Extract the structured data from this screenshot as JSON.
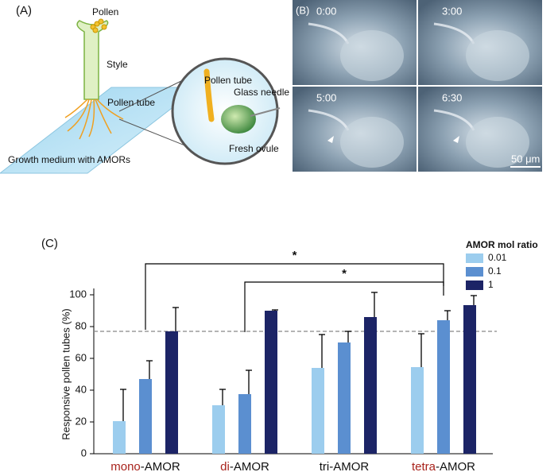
{
  "panel_a": {
    "label": "(A)",
    "pollen": "Pollen",
    "style": "Style",
    "pollen_tube": "Pollen tube",
    "medium": "Growth medium with AMORs",
    "zoom_pollen_tube": "Pollen tube",
    "glass_needle": "Glass needle",
    "fresh_ovule": "Fresh ovule"
  },
  "panel_b": {
    "label": "(B)",
    "times": [
      "0:00",
      "3:00",
      "5:00",
      "6:30"
    ],
    "scale_bar": "50 μm"
  },
  "chart_data": {
    "type": "bar",
    "panel_label": "(C)",
    "y_label": "Responsive pollen tubes (%)",
    "categories": [
      [
        "mono",
        "-AMOR"
      ],
      [
        "di",
        "-AMOR"
      ],
      [
        "tri",
        "-AMOR"
      ],
      [
        "tetra",
        "-AMOR"
      ]
    ],
    "label_highlight": [
      true,
      true,
      false,
      true
    ],
    "highlight_color": "#a8231c",
    "legend_title": "AMOR mol ratio",
    "series": [
      {
        "name": "0.01",
        "color": "#9ccdee",
        "values": [
          20.5,
          30.5,
          54,
          54.5
        ],
        "errors": [
          20,
          10,
          21,
          21
        ]
      },
      {
        "name": "0.1",
        "color": "#5b8fd0",
        "values": [
          47,
          37.5,
          70,
          84
        ],
        "errors": [
          11.5,
          15,
          7,
          6
        ]
      },
      {
        "name": "1",
        "color": "#1c2466",
        "values": [
          77,
          90,
          86,
          93.5
        ],
        "errors": [
          15,
          0.5,
          15.5,
          6
        ]
      }
    ],
    "ylim": [
      0,
      100
    ],
    "yticks": [
      0,
      20,
      40,
      60,
      80,
      100
    ],
    "reference_line": 77,
    "brackets": [
      {
        "from": [
          0,
          1
        ],
        "to": [
          3,
          1
        ],
        "y": 119.5,
        "left_end": 78,
        "right_end": 105.5,
        "label": "*"
      },
      {
        "from": [
          1,
          1
        ],
        "to": [
          3,
          1
        ],
        "y": 108,
        "left_end": 76.5,
        "right_end": 99.5,
        "label": "*"
      }
    ]
  }
}
